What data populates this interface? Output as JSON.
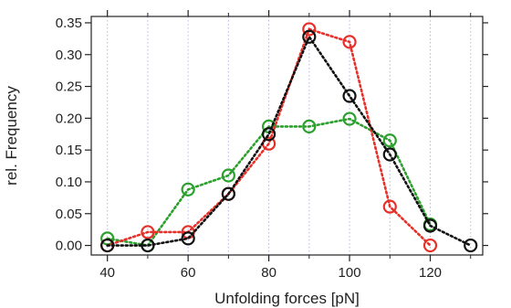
{
  "chart_data": {
    "type": "line",
    "xlabel": "Unfolding forces [pN]",
    "ylabel": "rel. Frequency",
    "xlim": [
      36,
      133
    ],
    "ylim": [
      -0.015,
      0.36
    ],
    "xticks": [
      40,
      60,
      80,
      100,
      120
    ],
    "xtick_labels": [
      "40",
      "60",
      "80",
      "100",
      "120"
    ],
    "yticks": [
      0.0,
      0.05,
      0.1,
      0.15,
      0.2,
      0.25,
      0.3,
      0.35
    ],
    "ytick_labels": [
      "0.00",
      "0.05",
      "0.10",
      "0.15",
      "0.20",
      "0.25",
      "0.30",
      "0.35"
    ],
    "grid": "vertical dotted",
    "marker": "open circle",
    "line_style": "dotted",
    "series": [
      {
        "color": "#2ca02c",
        "x": [
          40,
          50,
          60,
          70,
          80,
          90,
          100,
          110,
          120
        ],
        "y": [
          0.011,
          0.0,
          0.088,
          0.11,
          0.187,
          0.187,
          0.199,
          0.165,
          0.033
        ]
      },
      {
        "color": "#e8302a",
        "x": [
          40,
          50,
          60,
          70,
          80,
          90,
          100,
          110,
          120
        ],
        "y": [
          0.0,
          0.021,
          0.021,
          0.081,
          0.16,
          0.34,
          0.32,
          0.061,
          0.0
        ]
      },
      {
        "color": "#111111",
        "x": [
          40,
          50,
          60,
          70,
          80,
          90,
          100,
          110,
          120,
          130
        ],
        "y": [
          0.0,
          0.0,
          0.011,
          0.081,
          0.175,
          0.328,
          0.235,
          0.143,
          0.031,
          0.0
        ]
      }
    ]
  }
}
